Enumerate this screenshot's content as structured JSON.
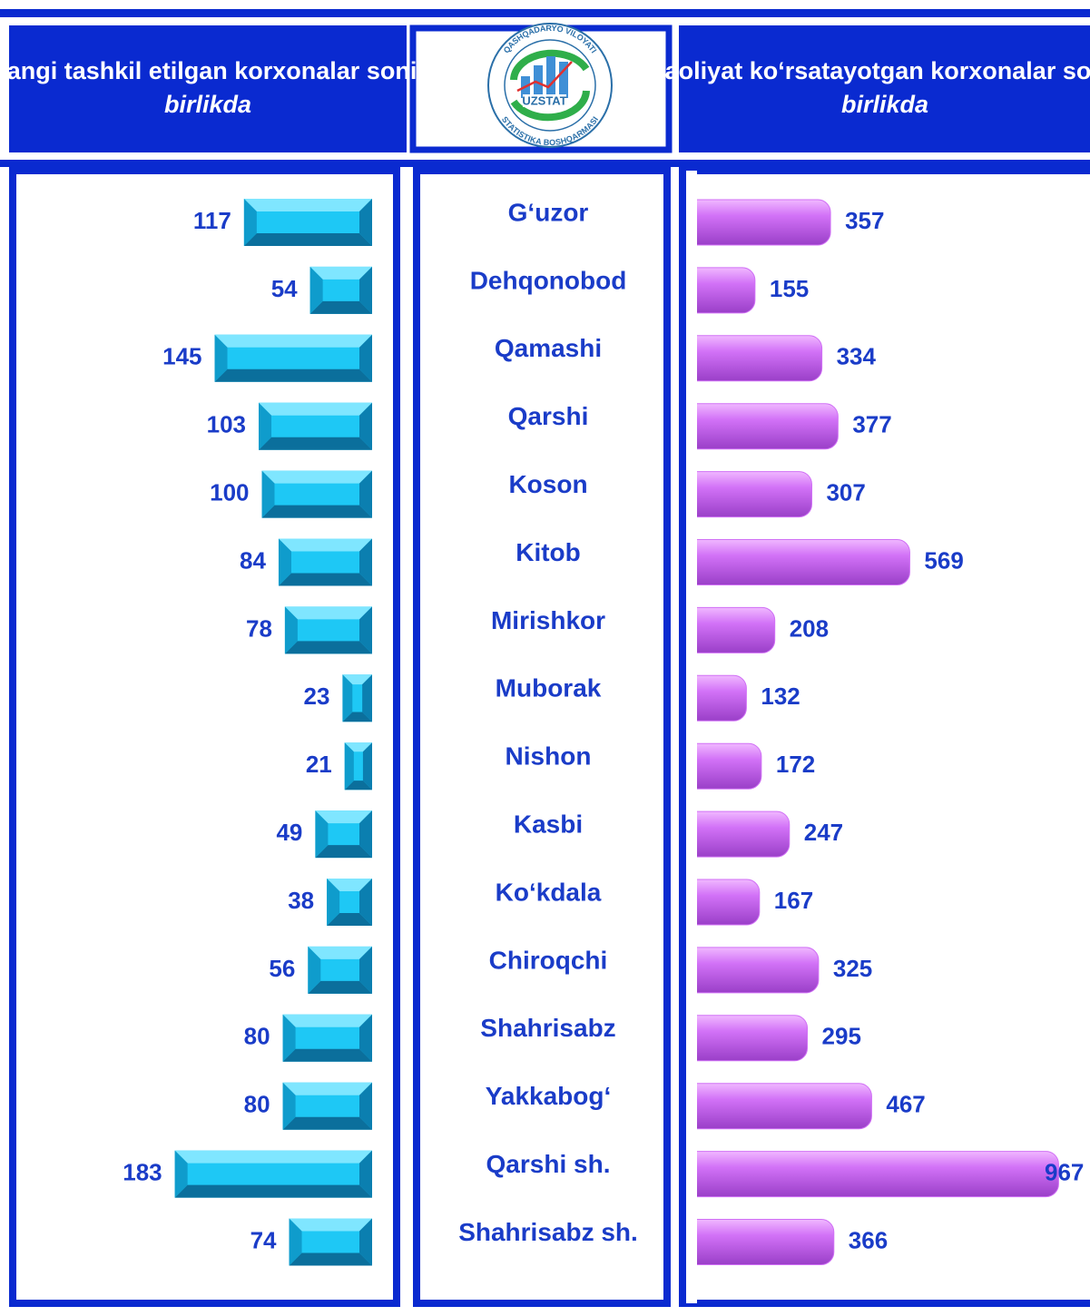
{
  "chart_data": {
    "type": "bar",
    "categories": [
      "G‘uzor",
      "Dehqonobod",
      "Qamashi",
      "Qarshi",
      "Koson",
      "Kitob",
      "Mirishkor",
      "Muborak",
      "Nishon",
      "Kasbi",
      "Ko‘kdala",
      "Chiroqchi",
      "Shahrisabz",
      "Yakkabog‘",
      "Qarshi sh.",
      "Shahrisabz sh."
    ],
    "series": [
      {
        "name": "Yangi tashkil etilgan korxonalar soni,",
        "unit": "birlikda",
        "color": "#1ec8f5",
        "values": [
          117,
          54,
          145,
          103,
          100,
          84,
          78,
          23,
          21,
          49,
          38,
          56,
          80,
          80,
          183,
          74
        ]
      },
      {
        "name": "Faoliyat ko‘rsatayotgan korxonalar soni,",
        "unit": "birlikda",
        "color": "#d070f5",
        "values": [
          357,
          155,
          334,
          377,
          307,
          569,
          208,
          132,
          172,
          247,
          167,
          325,
          295,
          467,
          967,
          366
        ]
      }
    ],
    "logo": {
      "brand": "UZSTAT",
      "top_text": "QASHQADARYO VILOYATI",
      "bottom_text": "STATISTIKA BOSHQARMASI"
    }
  }
}
